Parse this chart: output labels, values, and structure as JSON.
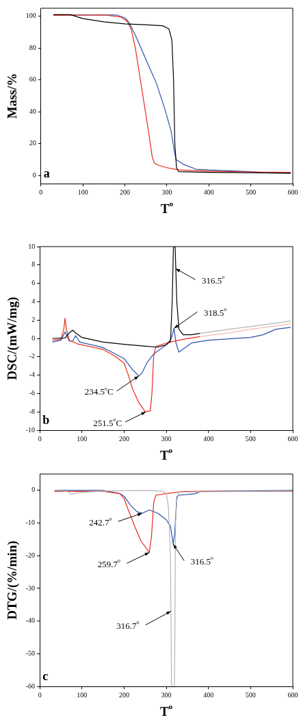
{
  "chart_data": [
    {
      "type": "line",
      "xlabel": "T$^{o}$",
      "ylabel": "Mass/%",
      "xlim": [
        0,
        600
      ],
      "ylim": [
        -5,
        105
      ],
      "xticks": [
        0,
        100,
        200,
        300,
        400,
        500,
        600
      ],
      "yticks": [
        0,
        20,
        40,
        60,
        80,
        100
      ],
      "grid": false,
      "annotations": [
        "a"
      ],
      "series": [
        {
          "color": "#000000",
          "x": [
            30,
            70,
            100,
            150,
            200,
            250,
            290,
            305,
            312,
            316,
            319,
            323,
            328,
            400,
            500,
            595
          ],
          "values": [
            101,
            101,
            98.5,
            96.5,
            95.2,
            94.6,
            94,
            92,
            85,
            60,
            20,
            5,
            2.5,
            2,
            1.8,
            1.5
          ]
        },
        {
          "color": "#e8291c",
          "x": [
            30,
            150,
            190,
            205,
            215,
            225,
            240,
            255,
            265,
            270,
            280,
            300,
            330,
            400,
            500,
            595
          ],
          "values": [
            100.5,
            100.8,
            99.5,
            97,
            92,
            80,
            55,
            30,
            12,
            8,
            6.5,
            5,
            3.5,
            2.8,
            2.3,
            2
          ]
        },
        {
          "color": "#2a52a8",
          "x": [
            30,
            180,
            200,
            210,
            225,
            250,
            275,
            295,
            310,
            318,
            322,
            340,
            370,
            400,
            500,
            530,
            595
          ],
          "values": [
            100.8,
            100.8,
            99,
            96,
            88,
            73,
            58,
            42,
            28,
            15,
            10,
            7,
            4,
            3.5,
            2.5,
            1.7,
            1.6
          ]
        }
      ]
    },
    {
      "type": "line",
      "xlabel": "T$^{o}$",
      "ylabel": "DSC/(mW/mg)",
      "xlim": [
        0,
        600
      ],
      "ylim": [
        -10,
        10
      ],
      "xticks": [
        0,
        100,
        200,
        300,
        400,
        500,
        600
      ],
      "yticks": [
        -10,
        -8,
        -6,
        -4,
        -2,
        0,
        2,
        4,
        6,
        8,
        10
      ],
      "grid": false,
      "annotations": [
        {
          "text": "316.5$^{o}$",
          "x": 322,
          "y": 7.6
        },
        {
          "text": "318.5$^{o}$",
          "x": 318.5,
          "y": 1.1
        },
        {
          "text": "234.5$^{o}$C",
          "x": 234.5,
          "y": -4.1
        },
        {
          "text": "251.5$^{o}$C",
          "x": 251.5,
          "y": -8
        },
        "b"
      ],
      "series": [
        {
          "color": "#000000",
          "x": [
            30,
            60,
            70,
            78,
            85,
            100,
            150,
            200,
            250,
            280,
            300,
            310,
            314,
            317,
            321,
            325,
            330,
            340,
            360,
            380
          ],
          "values": [
            0,
            0.05,
            0.6,
            0.9,
            0.6,
            0.1,
            -0.4,
            -0.65,
            -0.85,
            -0.95,
            -0.7,
            -0.3,
            4,
            10,
            10,
            4,
            1,
            0.4,
            0.4,
            0.55
          ]
        },
        {
          "color": "#b4b4b4",
          "x": [
            380,
            450,
            500,
            550,
            595
          ],
          "values": [
            0.55,
            1,
            1.3,
            1.6,
            1.9
          ]
        },
        {
          "color": "#e8291c",
          "x": [
            30,
            50,
            57,
            60,
            63,
            70,
            90,
            150,
            180,
            200,
            210,
            220,
            235,
            250,
            262,
            266,
            270,
            275,
            300,
            340,
            380
          ],
          "values": [
            -0.2,
            -0.1,
            1,
            2.2,
            1,
            -0.2,
            -0.6,
            -1.2,
            -2,
            -2.7,
            -4,
            -5.5,
            -7,
            -8,
            -7.9,
            -6,
            -2,
            -0.9,
            -0.5,
            -0.1,
            0.2
          ]
        },
        {
          "color": "#f2b8b4",
          "x": [
            380,
            450,
            500,
            550,
            595
          ],
          "values": [
            0.2,
            0.6,
            1,
            1.3,
            1.6
          ]
        },
        {
          "color": "#2a52a8",
          "x": [
            30,
            50,
            60,
            70,
            78,
            85,
            95,
            150,
            200,
            220,
            234.5,
            242,
            255,
            270,
            300,
            312,
            318.5,
            323,
            330,
            360,
            400,
            500,
            530,
            560,
            595
          ],
          "values": [
            -0.4,
            -0.2,
            0.7,
            -0.3,
            -0.3,
            0.3,
            -0.4,
            -1,
            -2.2,
            -3.4,
            -4.1,
            -3.8,
            -2.6,
            -1.7,
            -0.7,
            0,
            1.1,
            -0.5,
            -1.5,
            -0.5,
            -0.2,
            0.1,
            0.4,
            1,
            1.2
          ]
        }
      ]
    },
    {
      "type": "line",
      "xlabel": "T$^{o}$",
      "ylabel": "DTG/(%/min)",
      "xlim": [
        0,
        600
      ],
      "ylim": [
        -60,
        5
      ],
      "xticks": [
        0,
        100,
        200,
        300,
        400,
        500,
        600
      ],
      "yticks": [
        -60,
        -50,
        -40,
        -30,
        -20,
        -10,
        0
      ],
      "grid": false,
      "annotations": [
        {
          "text": "242.7$^{o}$",
          "x": 242.7,
          "y": -7
        },
        {
          "text": "259.7$^{o}$",
          "x": 259.7,
          "y": -19
        },
        {
          "text": "316.5$^{o}$",
          "x": 316.5,
          "y": -16.5
        },
        {
          "text": "316.7$^{o}$",
          "x": 311,
          "y": -37
        },
        "c"
      ],
      "series": [
        {
          "color": "#b4b4b4",
          "x": [
            35,
            65,
            75,
            90,
            150,
            250,
            290,
            300,
            305,
            310,
            312.5,
            319.5,
            322,
            325,
            330,
            600
          ],
          "values": [
            0,
            -0.3,
            -1.2,
            -0.7,
            -0.2,
            0,
            -0.2,
            -1,
            -5,
            -20,
            -60,
            -60,
            -10,
            -3,
            -0.5,
            -0.2
          ]
        },
        {
          "color": "#e8291c",
          "x": [
            35,
            150,
            190,
            200,
            210,
            225,
            240,
            259.7,
            265,
            270,
            275,
            300,
            340,
            600
          ],
          "values": [
            -0.3,
            -0.3,
            -1,
            -2.5,
            -6,
            -11,
            -15.5,
            -19,
            -14,
            -4,
            -1.5,
            -1,
            -0.3,
            -0.3
          ]
        },
        {
          "color": "#2a52a8",
          "x": [
            35,
            150,
            190,
            200,
            215,
            230,
            242.7,
            260,
            280,
            300,
            310,
            316.5,
            320,
            325,
            330,
            370,
            380,
            600
          ],
          "values": [
            0,
            0,
            -1,
            -1.8,
            -4.5,
            -6.5,
            -7,
            -6,
            -7,
            -9,
            -11,
            -16.5,
            -13,
            -2,
            -1.5,
            -1,
            -0.3,
            0
          ]
        }
      ]
    }
  ]
}
